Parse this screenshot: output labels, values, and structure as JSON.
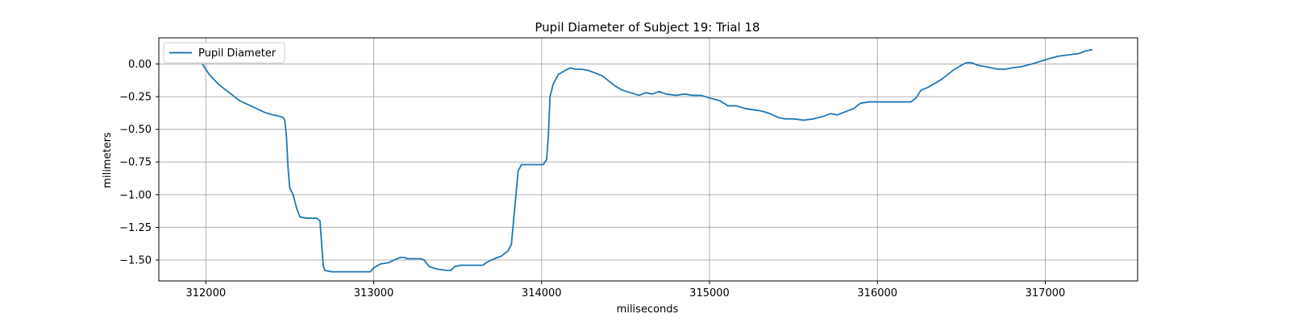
{
  "chart_data": {
    "type": "line",
    "title": "Pupil Diameter of Subject 19: Trial 18",
    "xlabel": "miliseconds",
    "ylabel": "milimeters",
    "xlim": [
      311720,
      317550
    ],
    "ylim": [
      -1.66,
      0.2
    ],
    "x_ticks": [
      312000,
      313000,
      314000,
      315000,
      316000,
      317000
    ],
    "x_tick_labels": [
      "312000",
      "313000",
      "314000",
      "315000",
      "316000",
      "317000"
    ],
    "y_ticks": [
      0.0,
      -0.25,
      -0.5,
      -0.75,
      -1.0,
      -1.25,
      -1.5
    ],
    "y_tick_labels": [
      "0.00",
      "−0.25",
      "−0.50",
      "−0.75",
      "−1.00",
      "−1.25",
      "−1.50"
    ],
    "grid": true,
    "legend_position": "top-left",
    "series": [
      {
        "name": "Pupil Diameter",
        "color": "#1f77b4",
        "points": [
          [
            311980,
            0.0
          ],
          [
            312000,
            -0.04
          ],
          [
            312020,
            -0.08
          ],
          [
            312050,
            -0.12
          ],
          [
            312080,
            -0.16
          ],
          [
            312120,
            -0.2
          ],
          [
            312160,
            -0.24
          ],
          [
            312200,
            -0.28
          ],
          [
            312250,
            -0.31
          ],
          [
            312300,
            -0.34
          ],
          [
            312350,
            -0.37
          ],
          [
            312400,
            -0.39
          ],
          [
            312440,
            -0.4
          ],
          [
            312460,
            -0.41
          ],
          [
            312470,
            -0.43
          ],
          [
            312480,
            -0.55
          ],
          [
            312490,
            -0.8
          ],
          [
            312500,
            -0.95
          ],
          [
            312520,
            -1.0
          ],
          [
            312540,
            -1.1
          ],
          [
            312560,
            -1.17
          ],
          [
            312600,
            -1.18
          ],
          [
            312660,
            -1.18
          ],
          [
            312680,
            -1.2
          ],
          [
            312690,
            -1.38
          ],
          [
            312700,
            -1.55
          ],
          [
            312710,
            -1.58
          ],
          [
            312750,
            -1.59
          ],
          [
            312850,
            -1.59
          ],
          [
            312980,
            -1.59
          ],
          [
            313000,
            -1.56
          ],
          [
            313040,
            -1.53
          ],
          [
            313090,
            -1.52
          ],
          [
            313120,
            -1.5
          ],
          [
            313160,
            -1.48
          ],
          [
            313180,
            -1.48
          ],
          [
            313200,
            -1.49
          ],
          [
            313280,
            -1.49
          ],
          [
            313300,
            -1.5
          ],
          [
            313330,
            -1.55
          ],
          [
            313380,
            -1.57
          ],
          [
            313440,
            -1.58
          ],
          [
            313460,
            -1.58
          ],
          [
            313480,
            -1.55
          ],
          [
            313520,
            -1.54
          ],
          [
            313600,
            -1.54
          ],
          [
            313650,
            -1.54
          ],
          [
            313670,
            -1.52
          ],
          [
            313700,
            -1.5
          ],
          [
            313760,
            -1.47
          ],
          [
            313800,
            -1.43
          ],
          [
            313820,
            -1.38
          ],
          [
            313840,
            -1.1
          ],
          [
            313860,
            -0.82
          ],
          [
            313880,
            -0.77
          ],
          [
            313950,
            -0.77
          ],
          [
            314010,
            -0.77
          ],
          [
            314030,
            -0.73
          ],
          [
            314040,
            -0.55
          ],
          [
            314050,
            -0.25
          ],
          [
            314070,
            -0.15
          ],
          [
            314100,
            -0.08
          ],
          [
            314140,
            -0.05
          ],
          [
            314170,
            -0.03
          ],
          [
            314200,
            -0.04
          ],
          [
            314240,
            -0.04
          ],
          [
            314280,
            -0.05
          ],
          [
            314320,
            -0.07
          ],
          [
            314360,
            -0.09
          ],
          [
            314400,
            -0.13
          ],
          [
            314440,
            -0.17
          ],
          [
            314480,
            -0.2
          ],
          [
            314530,
            -0.22
          ],
          [
            314580,
            -0.24
          ],
          [
            314620,
            -0.22
          ],
          [
            314660,
            -0.23
          ],
          [
            314700,
            -0.21
          ],
          [
            314740,
            -0.23
          ],
          [
            314800,
            -0.24
          ],
          [
            314850,
            -0.23
          ],
          [
            314900,
            -0.24
          ],
          [
            314950,
            -0.24
          ],
          [
            315000,
            -0.26
          ],
          [
            315060,
            -0.28
          ],
          [
            315110,
            -0.32
          ],
          [
            315160,
            -0.32
          ],
          [
            315210,
            -0.34
          ],
          [
            315260,
            -0.35
          ],
          [
            315310,
            -0.36
          ],
          [
            315360,
            -0.38
          ],
          [
            315410,
            -0.41
          ],
          [
            315450,
            -0.42
          ],
          [
            315500,
            -0.42
          ],
          [
            315560,
            -0.43
          ],
          [
            315620,
            -0.42
          ],
          [
            315680,
            -0.4
          ],
          [
            315720,
            -0.38
          ],
          [
            315760,
            -0.39
          ],
          [
            315800,
            -0.37
          ],
          [
            315860,
            -0.34
          ],
          [
            315900,
            -0.3
          ],
          [
            315950,
            -0.29
          ],
          [
            316050,
            -0.29
          ],
          [
            316150,
            -0.29
          ],
          [
            316200,
            -0.29
          ],
          [
            316230,
            -0.26
          ],
          [
            316260,
            -0.2
          ],
          [
            316300,
            -0.18
          ],
          [
            316340,
            -0.15
          ],
          [
            316380,
            -0.12
          ],
          [
            316420,
            -0.08
          ],
          [
            316460,
            -0.04
          ],
          [
            316500,
            -0.01
          ],
          [
            316530,
            0.01
          ],
          [
            316560,
            0.01
          ],
          [
            316600,
            -0.01
          ],
          [
            316640,
            -0.02
          ],
          [
            316680,
            -0.03
          ],
          [
            316720,
            -0.04
          ],
          [
            316760,
            -0.04
          ],
          [
            316800,
            -0.03
          ],
          [
            316860,
            -0.02
          ],
          [
            316920,
            0.0
          ],
          [
            316970,
            0.02
          ],
          [
            317020,
            0.04
          ],
          [
            317080,
            0.06
          ],
          [
            317140,
            0.07
          ],
          [
            317200,
            0.08
          ],
          [
            317240,
            0.1
          ],
          [
            317280,
            0.11
          ]
        ]
      }
    ]
  }
}
